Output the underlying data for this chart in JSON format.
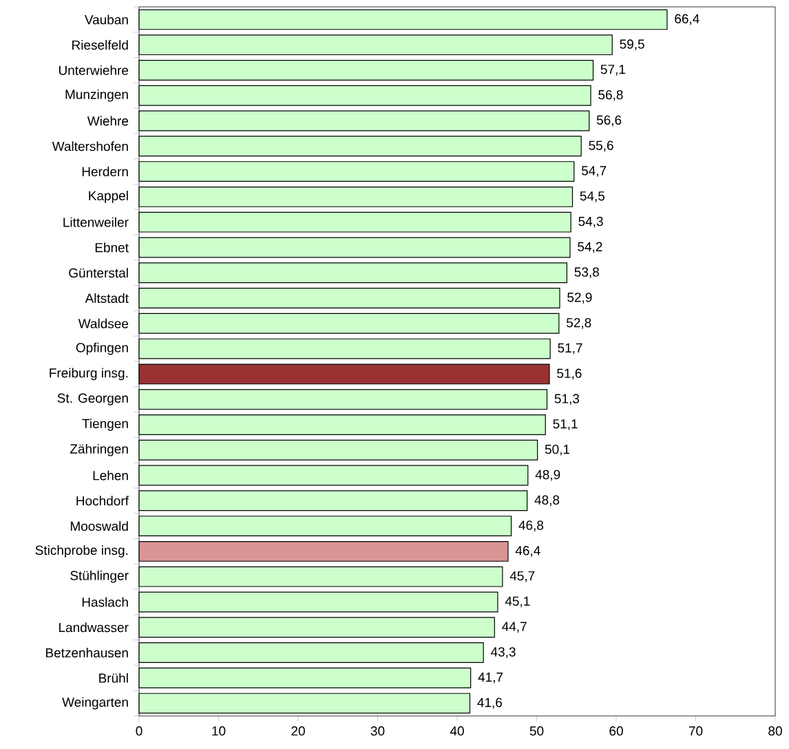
{
  "chart_data": {
    "type": "bar",
    "orientation": "horizontal",
    "categories": [
      "Vauban",
      "Rieselfeld",
      "Unterwiehre",
      "Munzingen",
      "Wiehre",
      "Waltershofen",
      "Herdern",
      "Kappel",
      "Littenweiler",
      "Ebnet",
      "Günterstal",
      "Altstadt",
      "Waldsee",
      "Opfingen",
      "Freiburg insg.",
      "St. Georgen",
      "Tiengen",
      "Zähringen",
      "Lehen",
      "Hochdorf",
      "Mooswald",
      "Stichprobe insg.",
      "Stühlinger",
      "Haslach",
      "Landwasser",
      "Betzenhausen",
      "Brühl",
      "Weingarten"
    ],
    "values": [
      66.4,
      59.5,
      57.1,
      56.8,
      56.6,
      55.6,
      54.7,
      54.5,
      54.3,
      54.2,
      53.8,
      52.9,
      52.8,
      51.7,
      51.6,
      51.3,
      51.1,
      50.1,
      48.9,
      48.8,
      46.8,
      46.4,
      45.7,
      45.1,
      44.7,
      43.3,
      41.7,
      41.6
    ],
    "value_labels": [
      "66,4",
      "59,5",
      "57,1",
      "56,8",
      "56,6",
      "55,6",
      "54,7",
      "54,5",
      "54,3",
      "54,2",
      "53,8",
      "52,9",
      "52,8",
      "51,7",
      "51,6",
      "51,3",
      "51,1",
      "50,1",
      "48,9",
      "48,8",
      "46,8",
      "46,4",
      "45,7",
      "45,1",
      "44,7",
      "43,3",
      "41,7",
      "41,6"
    ],
    "colors": [
      "#ccffcc",
      "#ccffcc",
      "#ccffcc",
      "#ccffcc",
      "#ccffcc",
      "#ccffcc",
      "#ccffcc",
      "#ccffcc",
      "#ccffcc",
      "#ccffcc",
      "#ccffcc",
      "#ccffcc",
      "#ccffcc",
      "#ccffcc",
      "#993333",
      "#ccffcc",
      "#ccffcc",
      "#ccffcc",
      "#ccffcc",
      "#ccffcc",
      "#ccffcc",
      "#d99594",
      "#ccffcc",
      "#ccffcc",
      "#ccffcc",
      "#ccffcc",
      "#ccffcc",
      "#ccffcc"
    ],
    "xlim": [
      0,
      80
    ],
    "xticks": [
      0,
      10,
      20,
      30,
      40,
      50,
      60,
      70,
      80
    ]
  }
}
